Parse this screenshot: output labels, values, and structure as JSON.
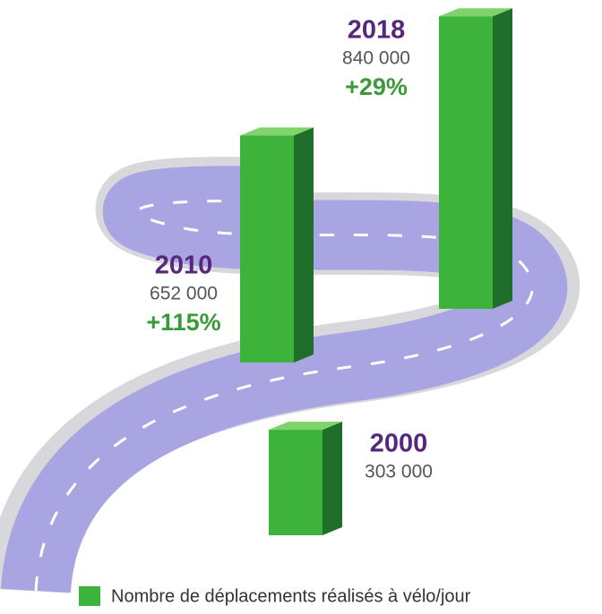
{
  "chart_data": {
    "type": "bar",
    "categories": [
      "2000",
      "2010",
      "2018"
    ],
    "series": [
      {
        "name": "Nombre de déplacements réalisés à vélo/jour",
        "color": "#3cb43c",
        "values": [
          303000,
          652000,
          840000
        ],
        "value_labels": [
          "303 000",
          "652 000",
          "840 000"
        ]
      }
    ],
    "growth": {
      "values": [
        null,
        115,
        29
      ],
      "value_labels": [
        null,
        "+115%",
        "+29%"
      ],
      "color": "#3a9a3a"
    },
    "legend": "bottom"
  }
}
